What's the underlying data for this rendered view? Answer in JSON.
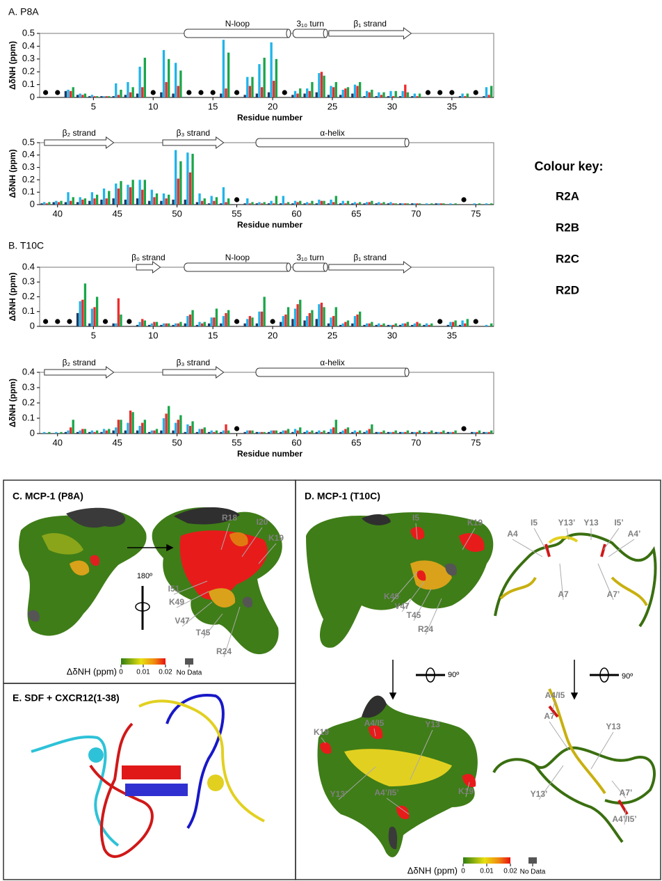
{
  "chart_data": [
    {
      "type": "bar",
      "title": "A. P8A",
      "ylabel": "ΔδNH (ppm)",
      "xlabel": "Residue number",
      "x": [
        1,
        2,
        3,
        4,
        5,
        6,
        7,
        8,
        9,
        10,
        11,
        12,
        13,
        14,
        15,
        16,
        17,
        18,
        19,
        20,
        21,
        22,
        23,
        24,
        25,
        26,
        27,
        28,
        29,
        30,
        31,
        32,
        33,
        34,
        35,
        36,
        37,
        38
      ],
      "xlim": [
        0.5,
        38.5
      ],
      "xticks": [
        5,
        10,
        15,
        20,
        25,
        30,
        35
      ],
      "ylim": [
        0,
        0.5
      ],
      "yticks": [
        0,
        0.1,
        0.2,
        0.3,
        0.4,
        0.5
      ],
      "series": [
        {
          "name": "R2A",
          "color": "#203864",
          "values": [
            null,
            null,
            0.05,
            0.02,
            0.01,
            0.01,
            0.01,
            0.02,
            0.03,
            null,
            0.04,
            0.03,
            null,
            null,
            null,
            0.03,
            null,
            0.02,
            0.03,
            0.04,
            null,
            0.02,
            0.03,
            0.04,
            0.02,
            0.02,
            0.03,
            0.01,
            0.01,
            0.01,
            0.01,
            0.01,
            null,
            null,
            null,
            0.01,
            null,
            0.01
          ]
        },
        {
          "name": "R2B",
          "color": "#1fb4ea",
          "values": [
            null,
            null,
            0.06,
            0.03,
            0.02,
            0.01,
            0.11,
            0.12,
            0.24,
            null,
            0.37,
            0.27,
            null,
            null,
            null,
            0.45,
            null,
            0.16,
            0.26,
            0.43,
            null,
            0.05,
            0.07,
            0.19,
            0.09,
            0.06,
            0.1,
            0.05,
            0.04,
            0.05,
            0.05,
            0.03,
            null,
            null,
            null,
            0.03,
            null,
            0.08
          ]
        },
        {
          "name": "R2C",
          "color": "#ee2b2b",
          "values": [
            null,
            null,
            0.05,
            0.02,
            0.01,
            0.01,
            0.02,
            0.04,
            0.08,
            null,
            0.12,
            0.09,
            null,
            null,
            null,
            0.07,
            null,
            0.09,
            0.08,
            0.13,
            null,
            0.03,
            0.05,
            0.2,
            0.08,
            0.07,
            0.09,
            0.04,
            0.02,
            0.01,
            0.1,
            0.01,
            null,
            null,
            null,
            0.01,
            null,
            0.02
          ]
        },
        {
          "name": "R2D",
          "color": "#1aa64a",
          "values": [
            null,
            null,
            0.08,
            0.03,
            0.01,
            0.01,
            0.06,
            0.08,
            0.31,
            null,
            0.3,
            0.21,
            null,
            null,
            null,
            0.35,
            null,
            0.16,
            0.31,
            0.3,
            null,
            0.07,
            0.12,
            0.17,
            0.12,
            0.08,
            0.12,
            0.06,
            0.04,
            0.05,
            0.04,
            0.03,
            null,
            null,
            null,
            0.03,
            null,
            0.09
          ]
        }
      ],
      "no_data": [
        1,
        2,
        10,
        13,
        14,
        15,
        17,
        21,
        33,
        34,
        35,
        37
      ],
      "structure": [
        {
          "label": "N-loop",
          "shape": "cylinder",
          "start": 12.6,
          "end": 21.5
        },
        {
          "label": "3₁₀ turn",
          "shape": "cylinder",
          "start": 21.7,
          "end": 24.6
        },
        {
          "label": "β₁ strand",
          "shape": "arrow",
          "start": 24.7,
          "end": 31.6
        }
      ]
    },
    {
      "type": "bar",
      "ylabel": "ΔδNH (ppm)",
      "xlabel": "Residue number",
      "x": [
        39,
        40,
        41,
        42,
        43,
        44,
        45,
        46,
        47,
        48,
        49,
        50,
        51,
        52,
        53,
        54,
        55,
        56,
        57,
        58,
        59,
        60,
        61,
        62,
        63,
        64,
        65,
        66,
        67,
        68,
        69,
        70,
        71,
        72,
        73,
        74,
        75,
        76
      ],
      "xlim": [
        38.5,
        76.5
      ],
      "xticks": [
        40,
        45,
        50,
        55,
        60,
        65,
        70,
        75
      ],
      "ylim": [
        0,
        0.5
      ],
      "yticks": [
        0,
        0.1,
        0.2,
        0.3,
        0.4,
        0.5
      ],
      "series": [
        {
          "color": "#203864",
          "values": [
            0.01,
            0.02,
            0.02,
            0.02,
            0.03,
            0.04,
            0.05,
            0.04,
            0.05,
            0.03,
            0.03,
            0.04,
            0.04,
            0.02,
            0.01,
            0.01,
            null,
            0.01,
            0.01,
            0.01,
            0.01,
            0.01,
            0.01,
            0.01,
            0.01,
            0.01,
            0.01,
            0.01,
            0.01,
            0.01,
            0.01,
            0.01,
            0,
            0.01,
            0,
            null,
            0,
            0
          ]
        },
        {
          "color": "#1fb4ea",
          "values": [
            0.02,
            0.03,
            0.1,
            0.06,
            0.1,
            0.13,
            0.17,
            0.16,
            0.2,
            0.12,
            0.09,
            0.44,
            0.42,
            0.09,
            0.07,
            0.14,
            null,
            0.05,
            0.02,
            0.03,
            0.07,
            0.03,
            0.02,
            0.04,
            0.04,
            0.03,
            0.02,
            0.02,
            0.02,
            0.02,
            0.01,
            0.01,
            0.01,
            0.01,
            0.01,
            null,
            0.01,
            0.01
          ]
        },
        {
          "color": "#ee2b2b",
          "values": [
            0.01,
            0.02,
            0.03,
            0.04,
            0.05,
            0.05,
            0.13,
            0.14,
            0.12,
            0.06,
            0.05,
            0.21,
            0.26,
            0.03,
            0.03,
            0.02,
            null,
            0.01,
            0.01,
            0.01,
            0.01,
            0.02,
            0.01,
            0.03,
            0.02,
            0.01,
            0.01,
            0.02,
            0.01,
            0.01,
            0.01,
            0.01,
            0,
            0.01,
            0,
            null,
            0,
            0
          ]
        },
        {
          "color": "#1aa64a",
          "values": [
            0.02,
            0.03,
            0.06,
            0.05,
            0.08,
            0.11,
            0.19,
            0.2,
            0.2,
            0.09,
            0.08,
            0.35,
            0.41,
            0.05,
            0.06,
            0.05,
            null,
            0.02,
            0.02,
            0.07,
            0.02,
            0.03,
            0.03,
            0.03,
            0.07,
            0.03,
            0.02,
            0.03,
            0.02,
            0.01,
            0.01,
            0.01,
            0.01,
            0.01,
            0.01,
            null,
            0.01,
            0.01
          ]
        }
      ],
      "no_data": [
        55,
        74
      ],
      "structure": [
        {
          "label": "β₂ strand",
          "shape": "arrow",
          "start": 38.9,
          "end": 44.7
        },
        {
          "label": "β₃ strand",
          "shape": "arrow",
          "start": 48.8,
          "end": 53.9
        },
        {
          "label": "α-helix",
          "shape": "cylinder",
          "start": 56.6,
          "end": 69.4
        }
      ]
    },
    {
      "type": "bar",
      "title": "B. T10C",
      "ylabel": "ΔδNH (ppm)",
      "x": [
        1,
        2,
        3,
        4,
        5,
        6,
        7,
        8,
        9,
        10,
        11,
        12,
        13,
        14,
        15,
        16,
        17,
        18,
        19,
        20,
        21,
        22,
        23,
        24,
        25,
        26,
        27,
        28,
        29,
        30,
        31,
        32,
        33,
        34,
        35,
        36,
        37,
        38
      ],
      "xlim": [
        0.5,
        38.5
      ],
      "xticks": [
        5,
        10,
        15,
        20,
        25,
        30,
        35
      ],
      "ylim": [
        0,
        0.4
      ],
      "yticks": [
        0,
        0.1,
        0.2,
        0.3,
        0.4
      ],
      "series": [
        {
          "color": "#203864",
          "values": [
            null,
            null,
            null,
            0.09,
            0.02,
            null,
            0.02,
            null,
            0.01,
            0.01,
            0.01,
            0.01,
            0.02,
            0.01,
            0.02,
            0.02,
            null,
            0.02,
            0.02,
            null,
            0.03,
            0.05,
            0.04,
            0.05,
            0.02,
            0.01,
            0.02,
            0.01,
            0.01,
            0.01,
            0.01,
            0.01,
            0.01,
            null,
            0.01,
            0.01,
            null,
            0
          ]
        },
        {
          "color": "#1fb4ea",
          "values": [
            null,
            null,
            null,
            0.17,
            0.12,
            null,
            0.02,
            null,
            0.03,
            0.02,
            0.02,
            0.02,
            0.07,
            0.03,
            0.06,
            0.07,
            null,
            0.05,
            0.1,
            null,
            0.07,
            0.12,
            0.07,
            0.15,
            0.06,
            0.02,
            0.07,
            0.02,
            0.02,
            0.01,
            0.02,
            0.02,
            0.02,
            null,
            0.03,
            0.04,
            null,
            0.01
          ]
        },
        {
          "color": "#ee2b2b",
          "values": [
            null,
            null,
            null,
            0.18,
            0.13,
            null,
            0.19,
            null,
            0.05,
            0.03,
            0.02,
            0.02,
            0.08,
            0.02,
            0.06,
            0.09,
            null,
            0.07,
            0.1,
            null,
            0.08,
            0.15,
            0.09,
            0.16,
            0.07,
            0.03,
            0.08,
            0.02,
            0.01,
            0.01,
            0.02,
            0.03,
            0.01,
            null,
            0.03,
            0.02,
            null,
            0
          ]
        },
        {
          "color": "#1aa64a",
          "values": [
            null,
            null,
            null,
            0.29,
            0.2,
            null,
            0.08,
            null,
            0.04,
            0.03,
            0.02,
            0.03,
            0.11,
            0.03,
            0.12,
            0.11,
            null,
            0.06,
            0.2,
            null,
            0.13,
            0.18,
            0.11,
            0.13,
            0.13,
            0.04,
            0.1,
            0.03,
            0.02,
            0.02,
            0.03,
            0.02,
            0.02,
            null,
            0.04,
            0.05,
            null,
            0.02
          ]
        }
      ],
      "no_data": [
        1,
        2,
        3,
        6,
        8,
        17,
        20,
        34,
        37
      ],
      "structure": [
        {
          "label": "β₀ strand",
          "shape": "arrow",
          "start": 8.6,
          "end": 10.6
        },
        {
          "label": "N-loop",
          "shape": "cylinder",
          "start": 12.6,
          "end": 21.5
        },
        {
          "label": "3₁₀ turn",
          "shape": "cylinder",
          "start": 21.7,
          "end": 24.6
        },
        {
          "label": "β₁ strand",
          "shape": "arrow",
          "start": 24.7,
          "end": 31.6
        }
      ]
    },
    {
      "type": "bar",
      "ylabel": "ΔδNH (ppm)",
      "xlabel": "Residue number",
      "x": [
        39,
        40,
        41,
        42,
        43,
        44,
        45,
        46,
        47,
        48,
        49,
        50,
        51,
        52,
        53,
        54,
        55,
        56,
        57,
        58,
        59,
        60,
        61,
        62,
        63,
        64,
        65,
        66,
        67,
        68,
        69,
        70,
        71,
        72,
        73,
        74,
        75,
        76
      ],
      "xlim": [
        38.5,
        76.5
      ],
      "xticks": [
        40,
        45,
        50,
        55,
        60,
        65,
        70,
        75
      ],
      "ylim": [
        0,
        0.4
      ],
      "yticks": [
        0,
        0.1,
        0.2,
        0.3,
        0.4
      ],
      "series": [
        {
          "color": "#203864",
          "values": [
            0,
            0,
            0.01,
            0.01,
            0.01,
            0.01,
            0.02,
            0.02,
            0.02,
            0.01,
            0.02,
            0.02,
            0.01,
            0.01,
            0.01,
            0.01,
            null,
            0.01,
            0.01,
            0.01,
            0.01,
            0.01,
            0.01,
            0.01,
            0.01,
            0.01,
            0.01,
            0.01,
            0.01,
            0.01,
            0.01,
            0.01,
            0.01,
            0.01,
            0.01,
            null,
            0.01,
            0.01
          ]
        },
        {
          "color": "#1fb4ea",
          "values": [
            0.01,
            0.01,
            0.02,
            0.02,
            0.02,
            0.03,
            0.04,
            0.07,
            0.05,
            0.02,
            0.1,
            0.07,
            0.06,
            0.03,
            0.02,
            0.02,
            null,
            0.02,
            0.01,
            0.02,
            0.02,
            0.03,
            0.02,
            0.02,
            0.03,
            0.02,
            0.02,
            0.02,
            0.01,
            0.01,
            0.01,
            0.01,
            0.01,
            0.01,
            0.01,
            null,
            0.01,
            0.01
          ]
        },
        {
          "color": "#ee2b2b",
          "values": [
            0,
            0,
            0.04,
            0.03,
            0.01,
            0.02,
            0.09,
            0.15,
            0.07,
            0.02,
            0.13,
            0.09,
            0.05,
            0.03,
            0.01,
            0.06,
            null,
            0.02,
            0.01,
            0.02,
            0.02,
            0.02,
            0.01,
            0.01,
            0.04,
            0.03,
            0.01,
            0.03,
            0.01,
            0.01,
            0.01,
            0.01,
            0.01,
            0.01,
            0.01,
            null,
            0.01,
            0.01
          ]
        },
        {
          "color": "#1aa64a",
          "values": [
            0.01,
            0.01,
            0.09,
            0.03,
            0.02,
            0.03,
            0.09,
            0.14,
            0.09,
            0.03,
            0.18,
            0.12,
            0.08,
            0.04,
            0.02,
            0.02,
            null,
            0.02,
            0.01,
            0.02,
            0.03,
            0.04,
            0.02,
            0.02,
            0.09,
            0.04,
            0.02,
            0.06,
            0.02,
            0.02,
            0.02,
            0.02,
            0.02,
            0.02,
            0.02,
            null,
            0.02,
            0.02
          ]
        }
      ],
      "no_data": [
        55,
        74
      ],
      "structure": [
        {
          "label": "β₂ strand",
          "shape": "arrow",
          "start": 38.9,
          "end": 44.7
        },
        {
          "label": "β₃ strand",
          "shape": "arrow",
          "start": 48.8,
          "end": 53.9
        },
        {
          "label": "α-helix",
          "shape": "cylinder",
          "start": 56.6,
          "end": 69.4
        }
      ]
    }
  ],
  "colour_key": {
    "title": "Colour key:"
  },
  "panels": {
    "c": {
      "title": "C. MCP-1 (P8A)",
      "labels": [
        "R18",
        "I20",
        "K19",
        "I51",
        "K49",
        "V47",
        "T45",
        "R24"
      ],
      "rotation": "180º",
      "colorbar": {
        "label": "ΔδNH (ppm)",
        "range": [
          0,
          0.02
        ],
        "ticks": [
          0,
          0.01,
          0.02
        ],
        "no_data": "No Data"
      }
    },
    "d": {
      "title": "D. MCP-1 (T10C)",
      "surface_labels": [
        "I5",
        "K19",
        "K49",
        "V47",
        "T45",
        "R24"
      ],
      "ribbon_labels": [
        "I5",
        "Y13’",
        "Y13",
        "I5’",
        "A4",
        "A4’",
        "A7",
        "A7’"
      ],
      "rotation_left": "90º",
      "rotation_right": "90º",
      "surface_bottom_labels": [
        "K19",
        "A4/I5",
        "Y13",
        "Y13’",
        "A4’/I5’",
        "K19"
      ],
      "ribbon_bottom_labels": [
        "A4/I5",
        "A7",
        "Y13",
        "Y13’",
        "A7’",
        "A4’/I5’"
      ],
      "colorbar": {
        "label": "ΔδNH (ppm)",
        "range": [
          0,
          0.02
        ],
        "ticks": [
          0,
          0.01,
          0.02
        ],
        "no_data": "No Data"
      }
    },
    "e": {
      "title": "E. SDF + CXCR12(1-38)"
    }
  }
}
